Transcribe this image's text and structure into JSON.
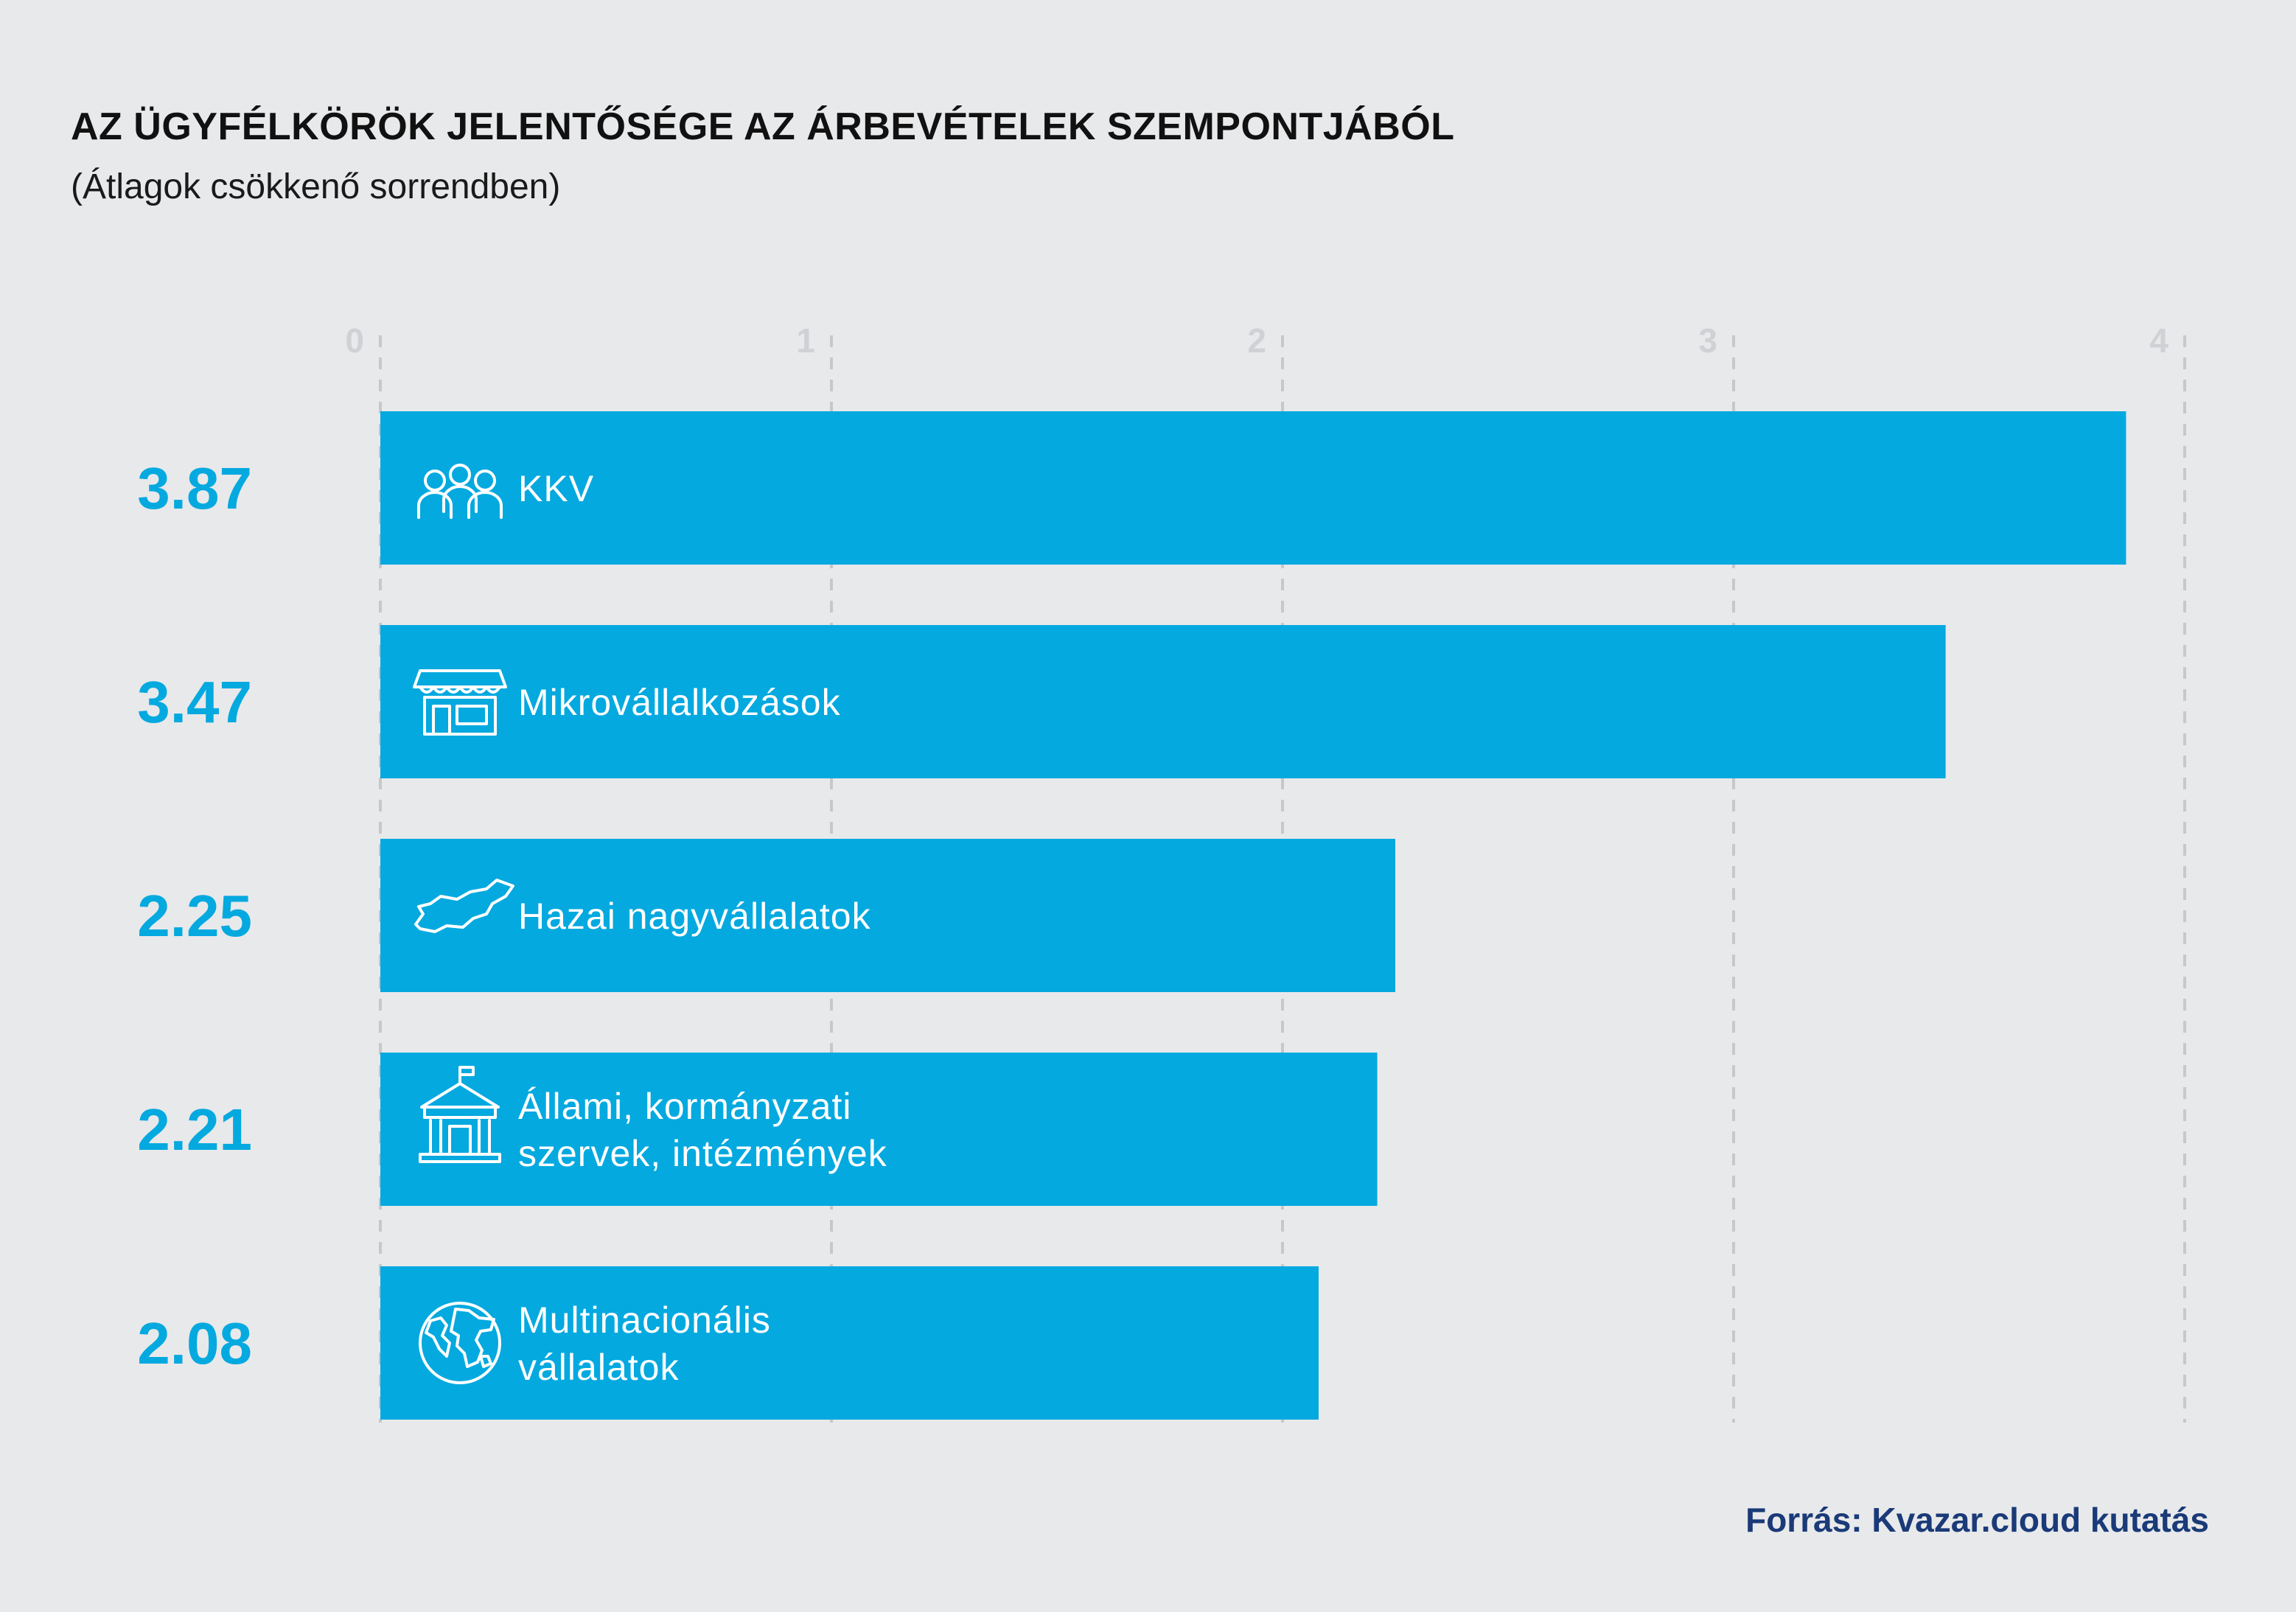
{
  "title": "AZ ÜGYFÉLKÖRÖK JELENTŐSÉGE AZ ÁRBEVÉTELEK SZEMPONTJÁBÓL",
  "subtitle": "(Átlagok csökkenő sorrendben)",
  "source": "Forrás: Kvazar.cloud kutatás",
  "colors": {
    "bar": "#04a9df",
    "value_text": "#04a9df",
    "tick_text": "#cfd1d4",
    "grid": "#c6c8cb",
    "source_text": "#1a3a78",
    "background": "#e8e9eb"
  },
  "chart_data": {
    "type": "bar",
    "orientation": "horizontal",
    "title": "AZ ÜGYFÉLKÖRÖK JELENTŐSÉGE AZ ÁRBEVÉTELEK SZEMPONTJÁBÓL",
    "subtitle": "(Átlagok csökkenő sorrendben)",
    "xlim": [
      0,
      4
    ],
    "xticks": [
      0,
      1,
      2,
      3,
      4
    ],
    "grid": "vertical dashed",
    "categories": [
      {
        "label_lines": [
          "KKV"
        ],
        "value": 3.87,
        "value_label": "3.87",
        "icon": "people-group-icon"
      },
      {
        "label_lines": [
          "Mikrovállalkozások"
        ],
        "value": 3.47,
        "value_label": "3.47",
        "icon": "storefront-icon"
      },
      {
        "label_lines": [
          "Hazai nagyvállalatok"
        ],
        "value": 2.25,
        "value_label": "2.25",
        "icon": "hungary-map-icon"
      },
      {
        "label_lines": [
          "Állami, kormányzati",
          "szervek, intézmények"
        ],
        "value": 2.21,
        "value_label": "2.21",
        "icon": "government-building-icon"
      },
      {
        "label_lines": [
          "Multinacionális",
          "vállalatok"
        ],
        "value": 2.08,
        "value_label": "2.08",
        "icon": "globe-icon"
      }
    ]
  }
}
